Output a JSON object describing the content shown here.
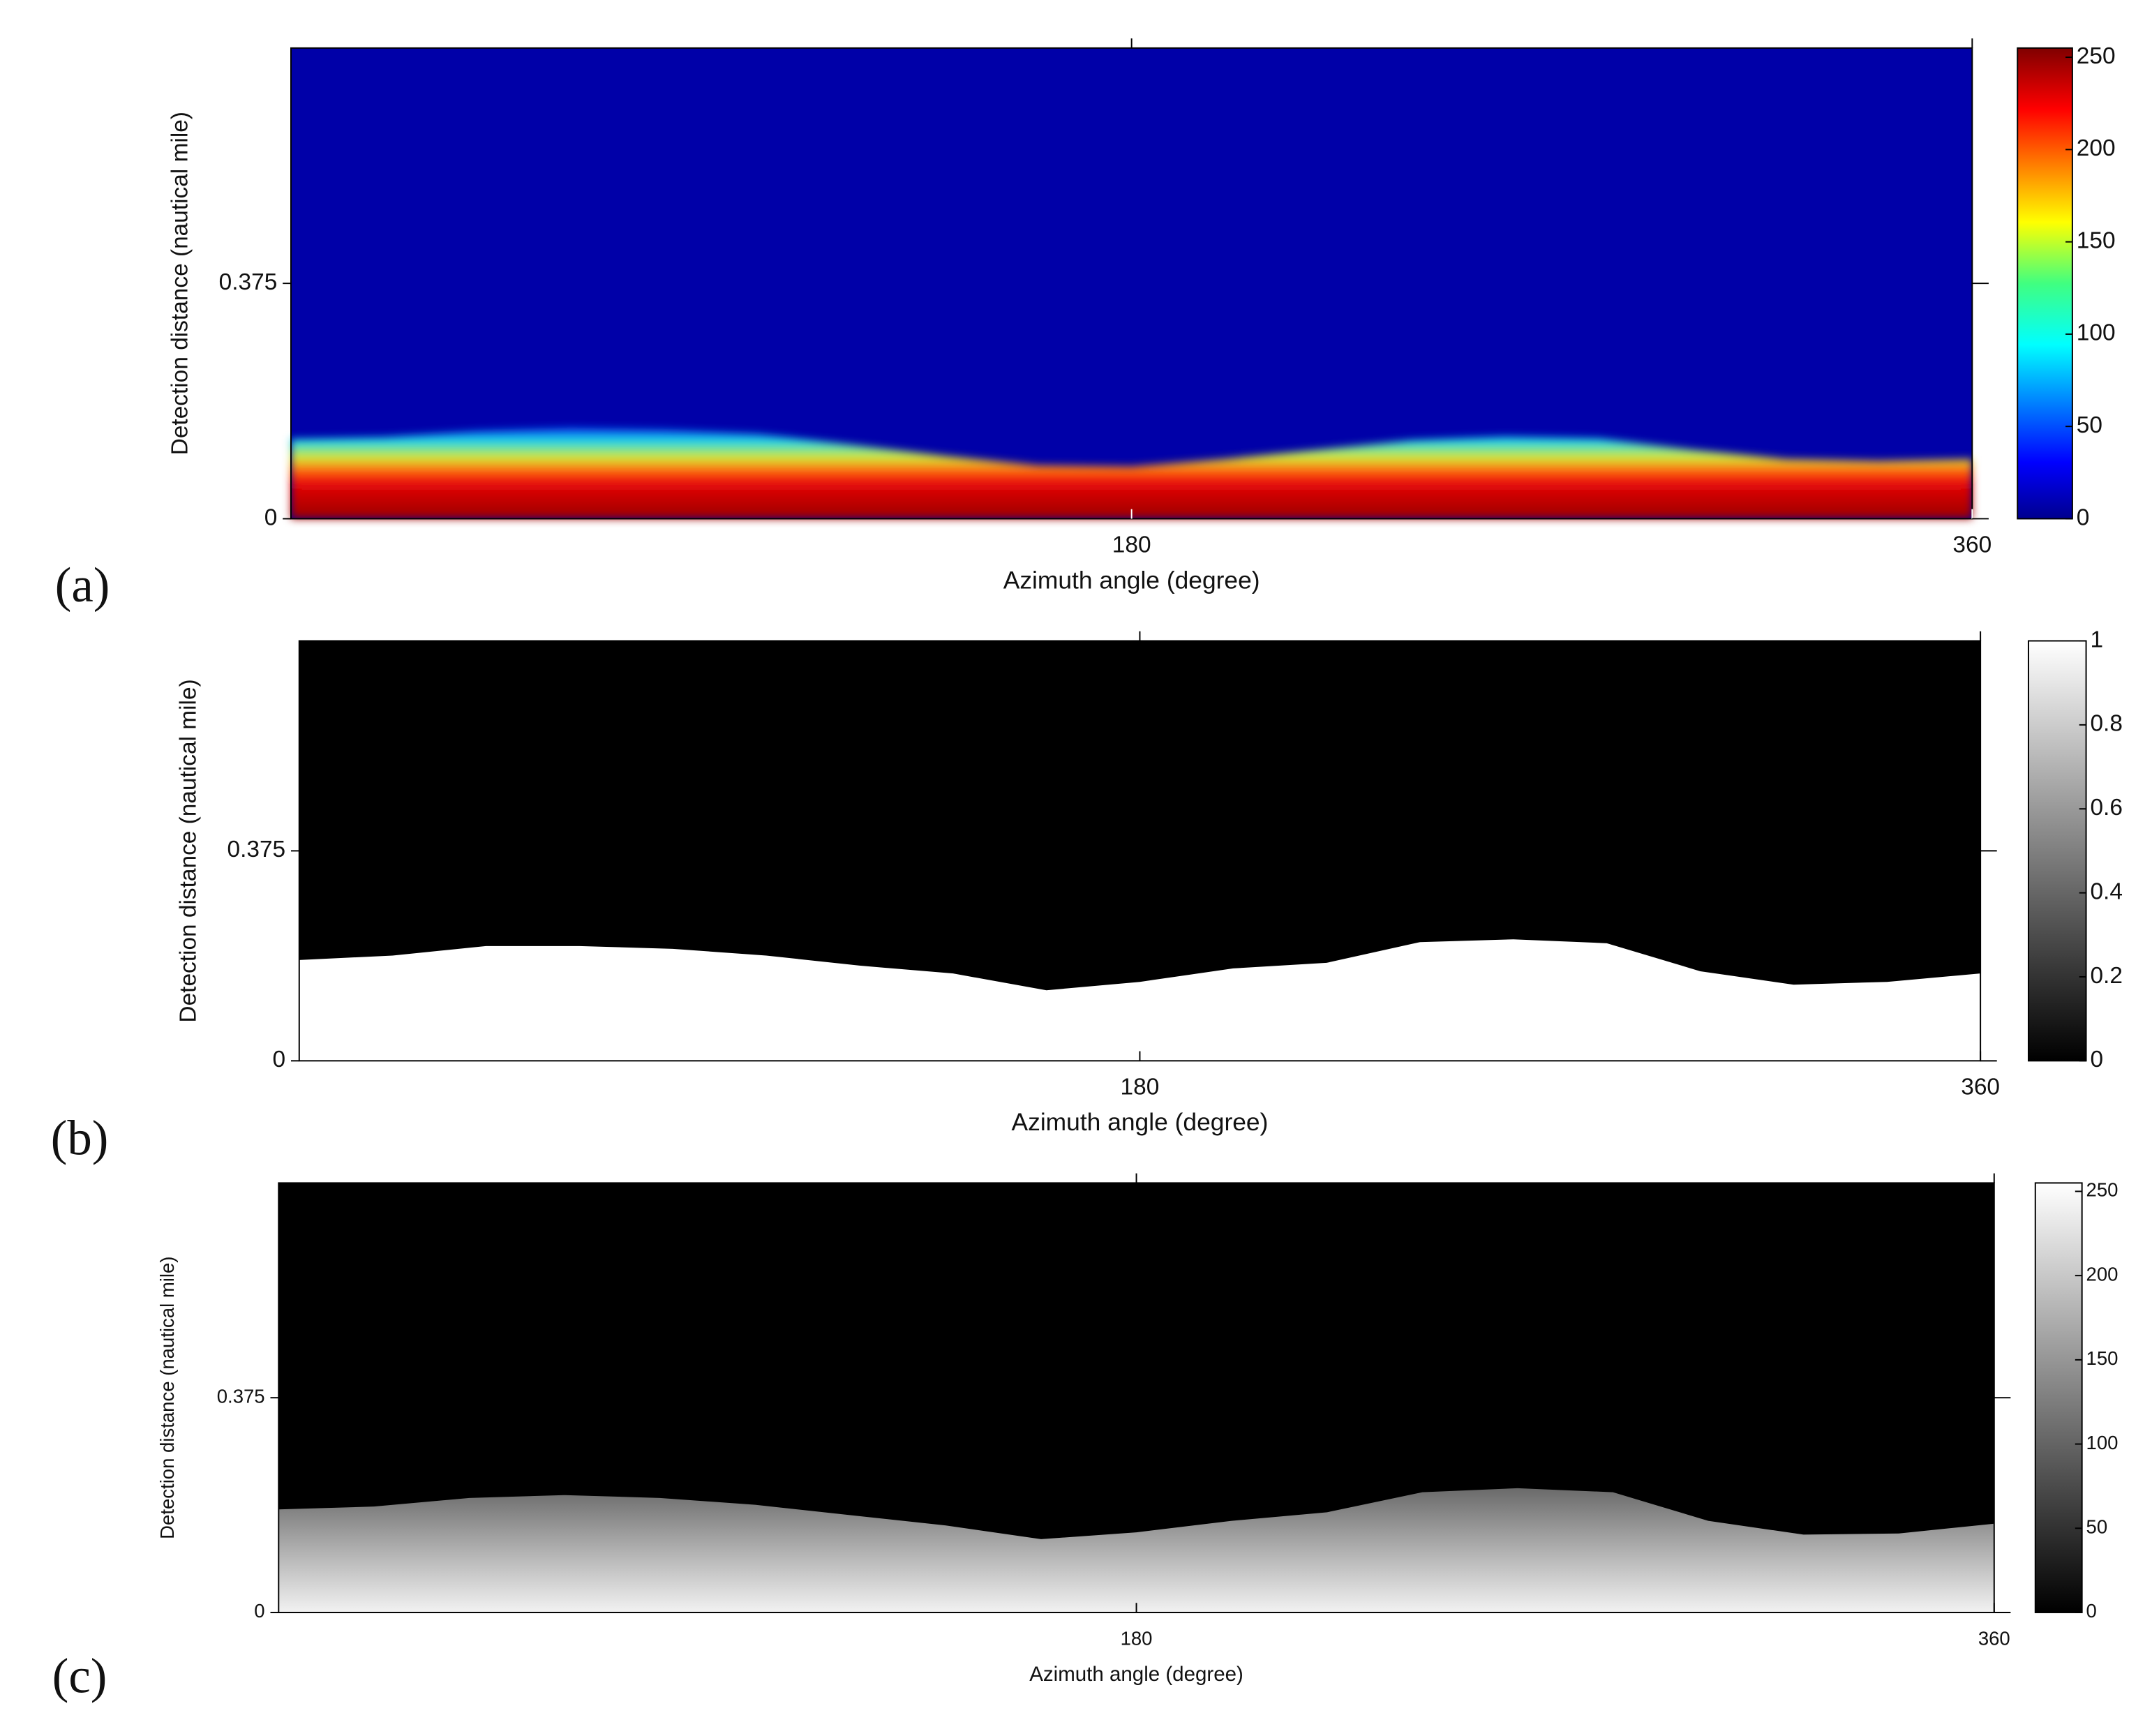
{
  "chart_data": [
    {
      "type": "heatmap",
      "label": "(a)",
      "xlabel": "Azimuth angle (degree)",
      "ylabel": "Detection distance (nautical mile)",
      "xlim": [
        0,
        360
      ],
      "xticks": [
        180,
        360
      ],
      "ylim": [
        0,
        0.75
      ],
      "yticks": [
        0,
        0.375
      ],
      "colormap": "jet",
      "clim": [
        0,
        255
      ],
      "cticks": [
        0,
        50,
        100,
        150,
        200,
        250
      ],
      "x": [
        0,
        20,
        40,
        60,
        80,
        100,
        120,
        140,
        160,
        180,
        200,
        220,
        240,
        260,
        280,
        300,
        320,
        340,
        360
      ],
      "values": [
        0.127,
        0.13,
        0.14,
        0.145,
        0.142,
        0.135,
        0.118,
        0.1,
        0.085,
        0.083,
        0.095,
        0.11,
        0.125,
        0.131,
        0.128,
        0.11,
        0.095,
        0.092,
        0.095
      ]
    },
    {
      "type": "heatmap",
      "label": "(b)",
      "xlabel": "Azimuth angle (degree)",
      "ylabel": "Detection distance (nautical mile)",
      "xlim": [
        0,
        360
      ],
      "xticks": [
        180,
        360
      ],
      "ylim": [
        0,
        0.75
      ],
      "yticks": [
        0,
        0.375
      ],
      "colormap": "gray",
      "clim": [
        0,
        1
      ],
      "cticks": [
        0,
        0.2,
        0.4,
        0.6,
        0.8,
        1
      ],
      "x": [
        0,
        20,
        40,
        60,
        80,
        100,
        120,
        140,
        160,
        180,
        200,
        220,
        240,
        260,
        280,
        300,
        320,
        340,
        360
      ],
      "values": [
        0.18,
        0.188,
        0.205,
        0.205,
        0.2,
        0.188,
        0.17,
        0.156,
        0.126,
        0.141,
        0.165,
        0.175,
        0.212,
        0.217,
        0.21,
        0.16,
        0.136,
        0.141,
        0.156
      ]
    },
    {
      "type": "heatmap",
      "label": "(c)",
      "xlabel": "Azimuth angle (degree)",
      "ylabel": "Detection distance (nautical mile)",
      "xlim": [
        0,
        360
      ],
      "xticks": [
        180,
        360
      ],
      "ylim": [
        0,
        0.75
      ],
      "yticks": [
        0,
        0.375
      ],
      "colormap": "gray",
      "clim": [
        0,
        255
      ],
      "cticks": [
        0,
        50,
        100,
        150,
        200,
        250
      ],
      "x": [
        0,
        20,
        40,
        60,
        80,
        100,
        120,
        140,
        160,
        180,
        200,
        220,
        240,
        260,
        280,
        300,
        320,
        340,
        360
      ],
      "values": [
        0.18,
        0.185,
        0.2,
        0.205,
        0.2,
        0.188,
        0.17,
        0.152,
        0.128,
        0.14,
        0.16,
        0.175,
        0.21,
        0.217,
        0.21,
        0.16,
        0.136,
        0.138,
        0.155
      ]
    }
  ]
}
